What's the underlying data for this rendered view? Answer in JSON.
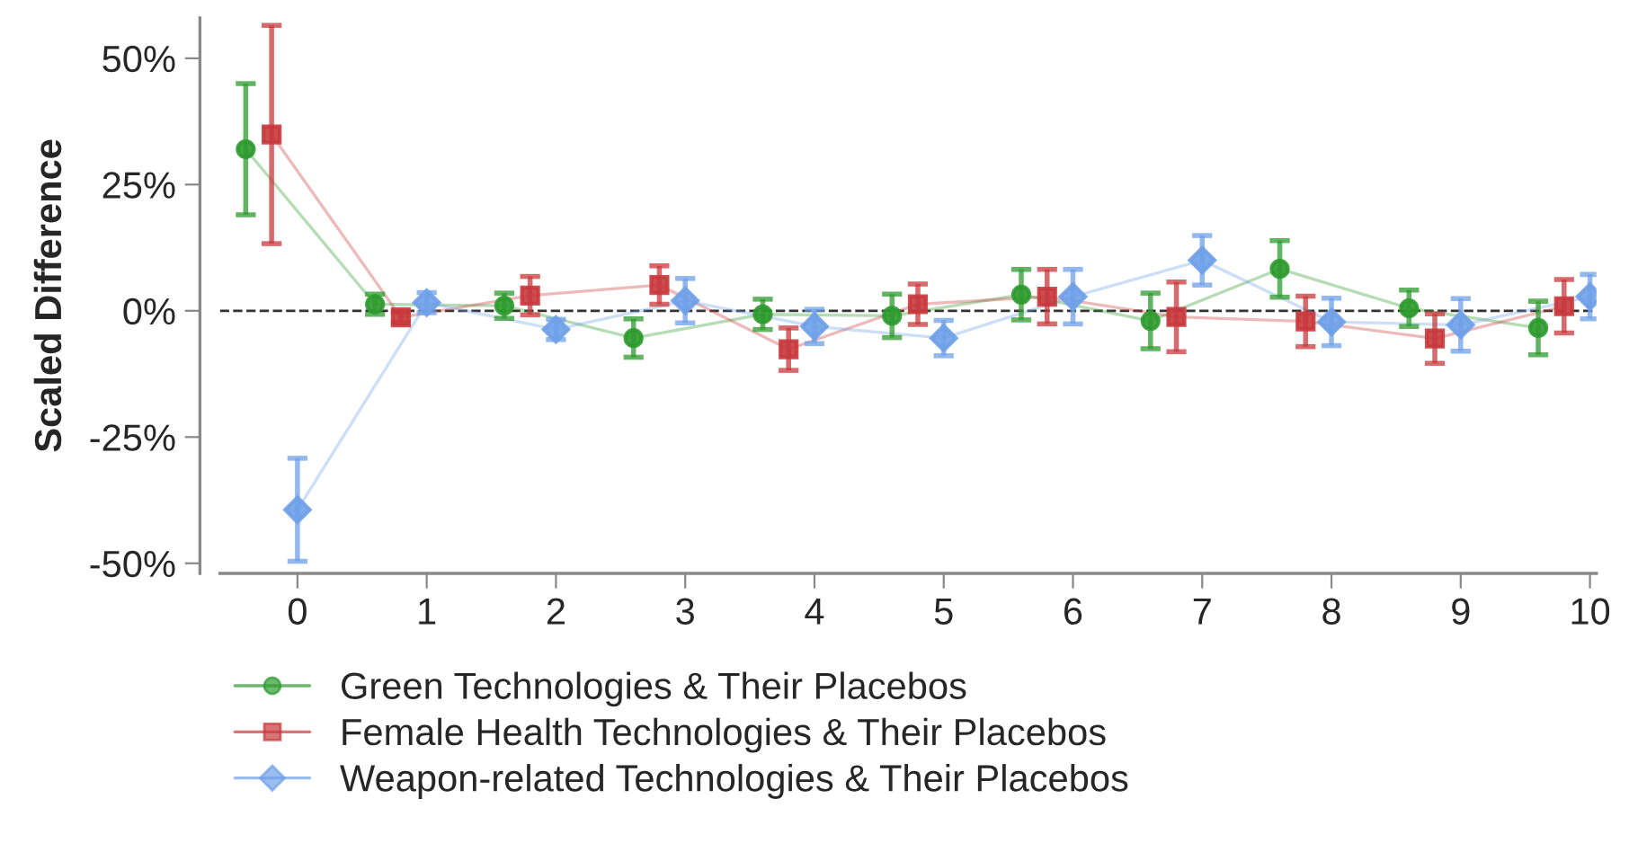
{
  "chart_data": {
    "type": "line",
    "ylabel": "Scaled Difference",
    "xlim": [
      -0.6,
      10.05
    ],
    "xticks": [
      0,
      1,
      2,
      3,
      4,
      5,
      6,
      7,
      8,
      9,
      10
    ],
    "ylim": [
      -52,
      58
    ],
    "yticks": [
      {
        "value": -50,
        "label": "-50%"
      },
      {
        "value": -25,
        "label": "-25%"
      },
      {
        "value": 0,
        "label": "0%"
      },
      {
        "value": 25,
        "label": "25%"
      },
      {
        "value": 50,
        "label": "50%"
      }
    ],
    "grid": false,
    "legend": "bottom",
    "ref_lines": [
      {
        "axis": "y",
        "value": 0,
        "color": "#333333",
        "line_style": "dashed"
      }
    ],
    "series": [
      {
        "name": "Green Technologies & Their Placebos",
        "color": "#2e9a2e",
        "marker": "circle",
        "x": [
          -0.4,
          0.6,
          1.6,
          2.6,
          3.6,
          4.6,
          5.6,
          6.6,
          7.6,
          8.6,
          9.6
        ],
        "values": [
          32,
          1.3,
          1,
          -5.4,
          -0.7,
          -1,
          3.2,
          -2,
          8.3,
          0.5,
          -3.4
        ],
        "errors": [
          13,
          2,
          2.5,
          3.8,
          3,
          4.3,
          5,
          5.5,
          5.6,
          3.6,
          5.3
        ]
      },
      {
        "name": "Female Health Technologies & Their Placebos",
        "color": "#c8383c",
        "marker": "square",
        "x": [
          -0.2,
          0.8,
          1.8,
          2.8,
          3.8,
          4.8,
          5.8,
          6.8,
          7.8,
          8.8,
          9.8
        ],
        "values": [
          34.9,
          -1.3,
          3,
          5.1,
          -7.6,
          1.3,
          2.8,
          -1.2,
          -2.1,
          -5.5,
          0.9
        ],
        "errors": [
          21.6,
          1,
          3.8,
          3.8,
          4.2,
          4,
          5.4,
          6.9,
          5,
          4.9,
          5.3
        ]
      },
      {
        "name": "Weapon-related Technologies & Their Placebos",
        "color": "#6fa0e8",
        "marker": "diamond",
        "x": [
          0,
          1,
          2,
          3,
          4,
          5,
          6,
          7,
          8,
          9,
          10
        ],
        "values": [
          -39.4,
          1.6,
          -3.7,
          2,
          -3.1,
          -5.4,
          2.8,
          10,
          -2.2,
          -2.8,
          2.8
        ],
        "errors": [
          10.2,
          2,
          2,
          4.4,
          3.4,
          3.5,
          5.4,
          4.9,
          4.7,
          5.2,
          4.4
        ]
      }
    ]
  }
}
